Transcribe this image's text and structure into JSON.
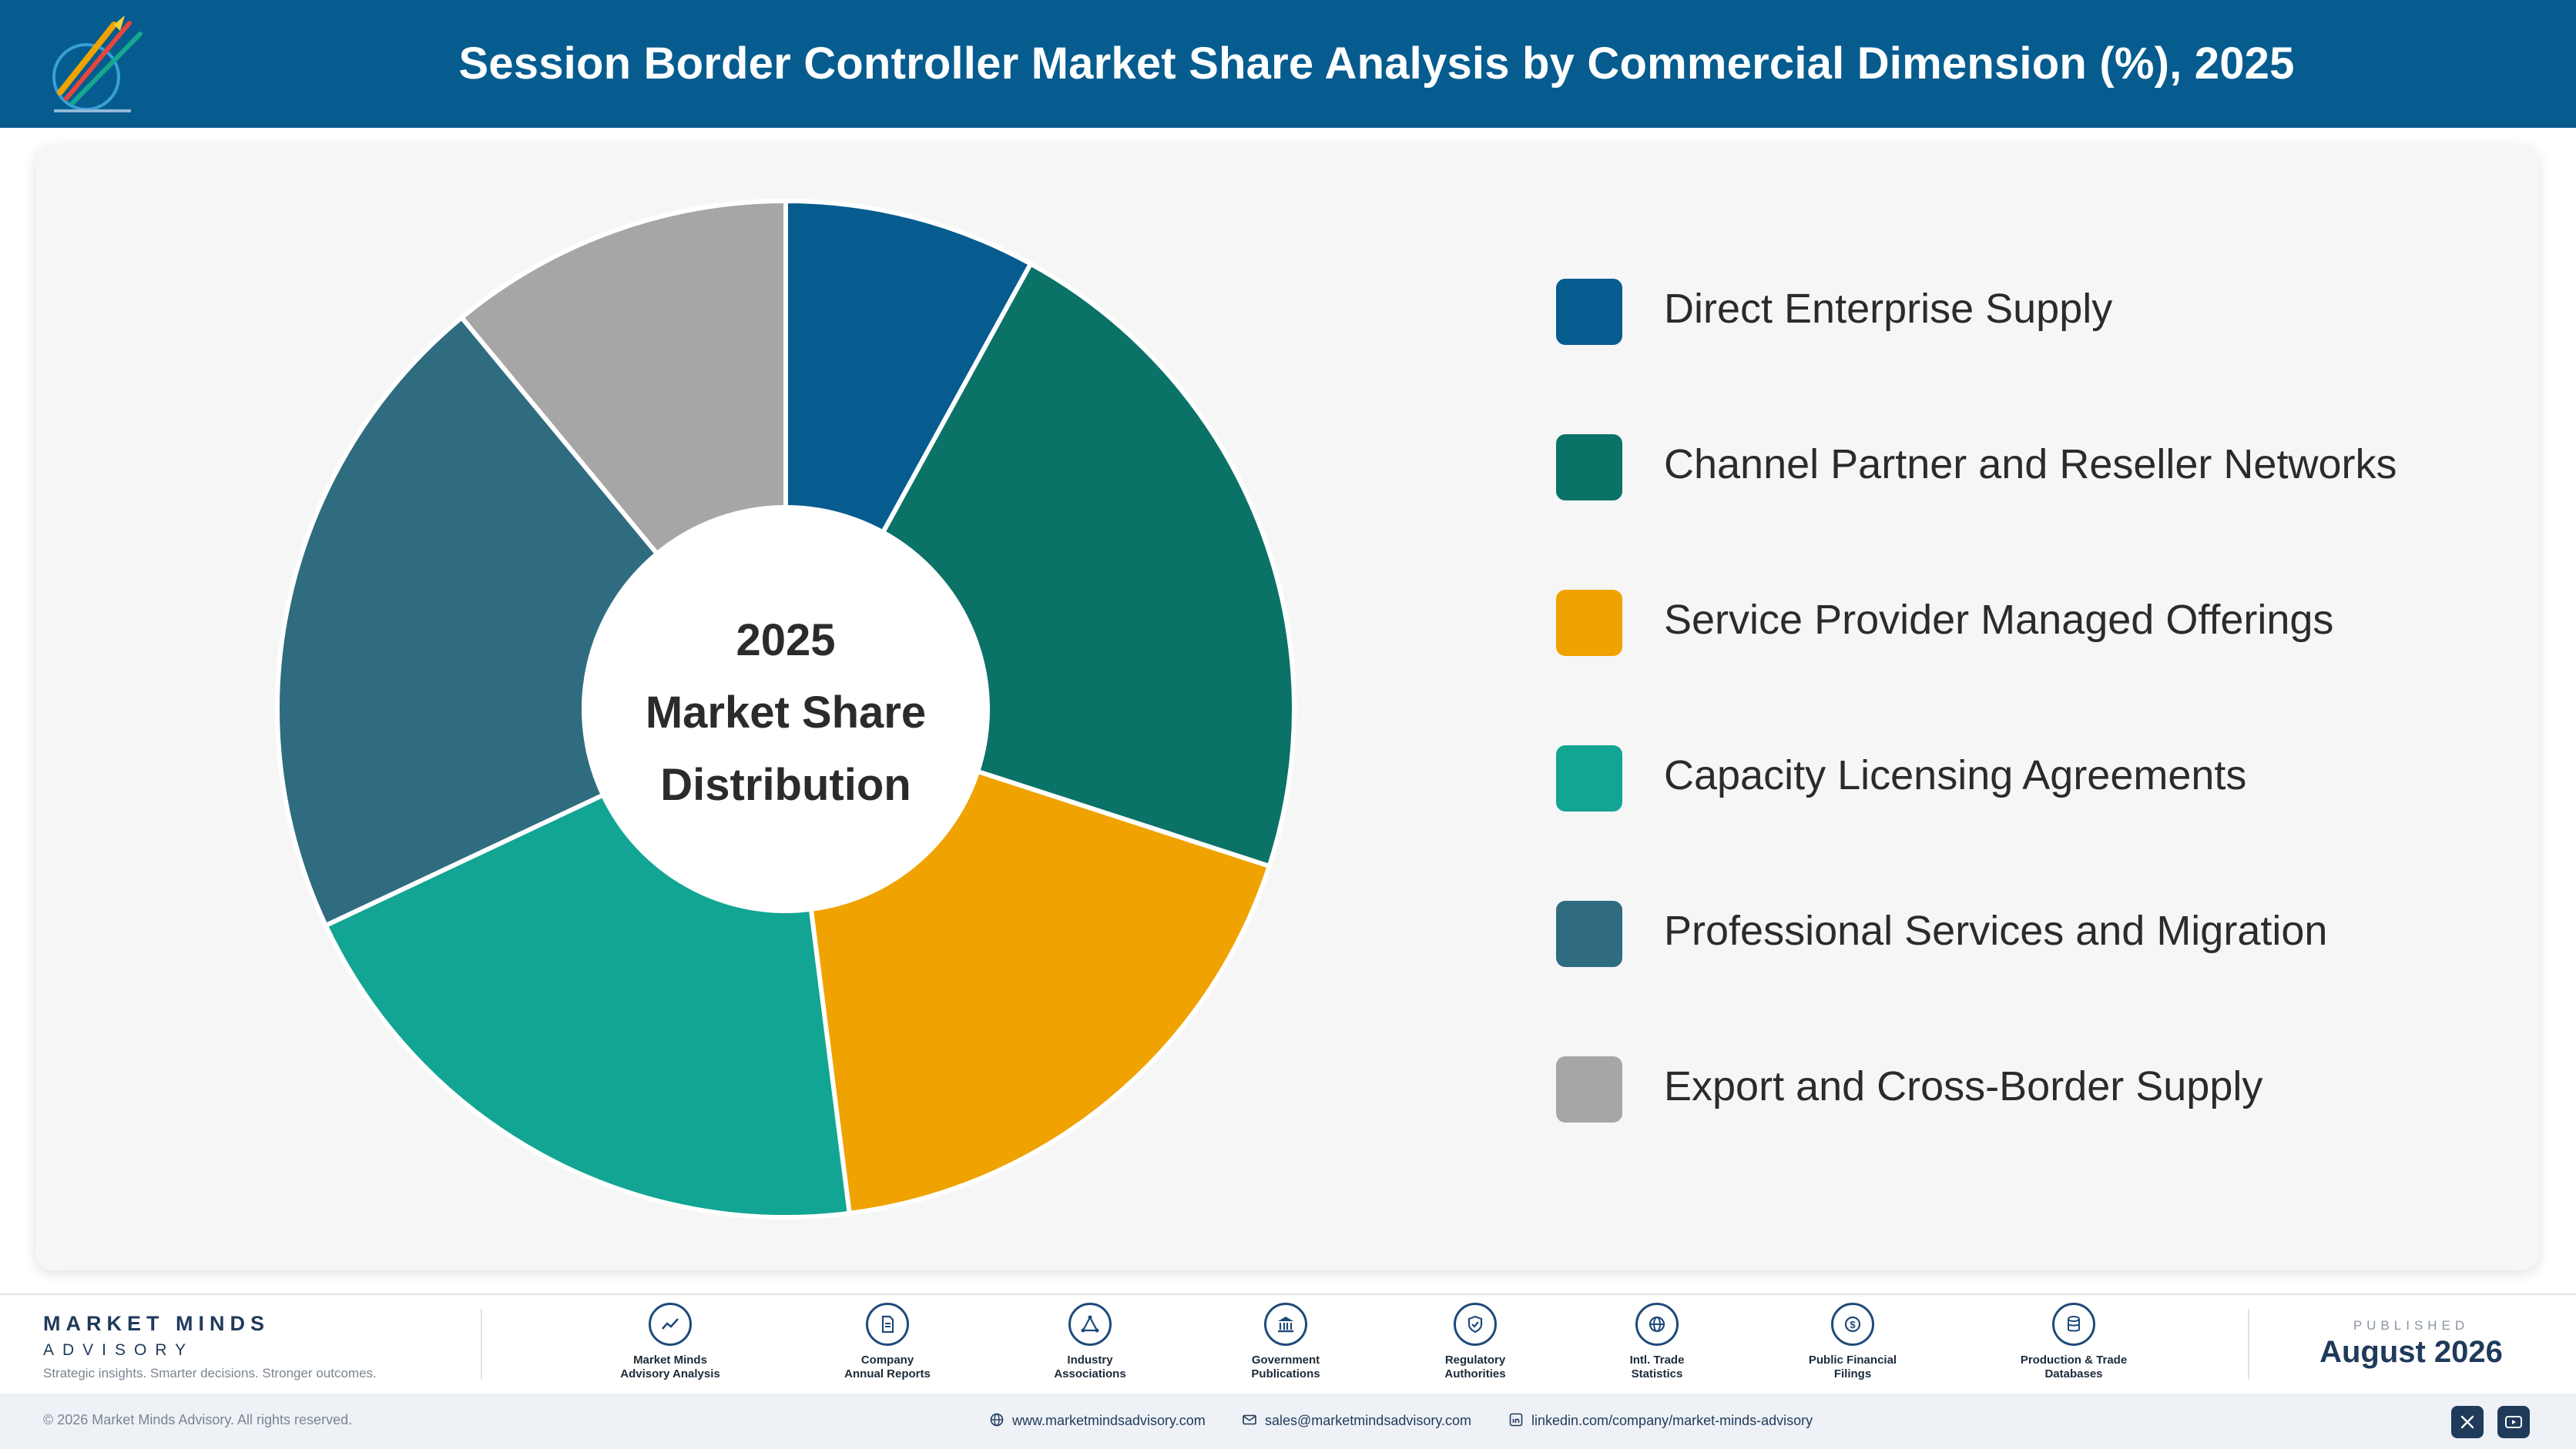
{
  "header": {
    "title": "Session Border Controller Market Share Analysis by Commercial Dimension (%), 2025"
  },
  "chart_data": {
    "type": "pie",
    "title": "Session Border Controller Market Share Analysis by Commercial Dimension (%), 2025",
    "center_text": [
      "2025",
      "Market Share",
      "Distribution"
    ],
    "categories": [
      "Direct Enterprise Supply",
      "Channel Partner and Reseller Networks",
      "Service Provider Managed Offerings",
      "Capacity Licensing Agreements",
      "Professional Services and Migration",
      "Export and Cross-Border Supply"
    ],
    "values": [
      8,
      22,
      18,
      20,
      21,
      11
    ],
    "colors": [
      "#065c8f",
      "#0b7268",
      "#f0a300",
      "#12a593",
      "#2f6c80",
      "#a6a6a6"
    ],
    "legend_placement": "right"
  },
  "footer": {
    "brand_name": "MARKET MINDS",
    "brand_sub": "ADVISORY",
    "brand_tagline": "Strategic insights. Smarter decisions. Stronger outcomes.",
    "sources": [
      {
        "line1": "Market Minds",
        "line2": "Advisory Analysis",
        "icon": "trend-chart-icon"
      },
      {
        "line1": "Company",
        "line2": "Annual Reports",
        "icon": "document-icon"
      },
      {
        "line1": "Industry",
        "line2": "Associations",
        "icon": "network-icon"
      },
      {
        "line1": "Government",
        "line2": "Publications",
        "icon": "government-building-icon"
      },
      {
        "line1": "Regulatory",
        "line2": "Authorities",
        "icon": "shield-check-icon"
      },
      {
        "line1": "Intl. Trade",
        "line2": "Statistics",
        "icon": "globe-icon"
      },
      {
        "line1": "Public Financial",
        "line2": "Filings",
        "icon": "dollar-coin-icon"
      },
      {
        "line1": "Production & Trade",
        "line2": "Databases",
        "icon": "database-icon"
      }
    ],
    "published_label": "PUBLISHED",
    "published_date": "August 2026"
  },
  "bottom": {
    "copyright": "© 2026 Market Minds Advisory. All rights reserved.",
    "website": "www.marketmindsadvisory.com",
    "email": "sales@marketmindsadvisory.com",
    "linkedin": "linkedin.com/company/market-minds-advisory"
  }
}
